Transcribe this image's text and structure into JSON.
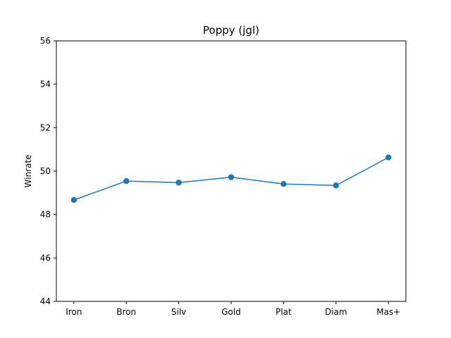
{
  "chart_data": {
    "type": "line",
    "title": "Poppy (jgl)",
    "xlabel": "",
    "ylabel": "Winrate",
    "categories": [
      "Iron",
      "Bron",
      "Silv",
      "Gold",
      "Plat",
      "Diam",
      "Mas+"
    ],
    "series": [
      {
        "values": [
          48.67,
          49.54,
          49.47,
          49.72,
          49.41,
          49.34,
          50.63
        ],
        "color": "#1f77b4",
        "marker": "circle"
      }
    ],
    "ylim": [
      44,
      56
    ],
    "yticks": [
      44,
      46,
      48,
      50,
      52,
      54,
      56
    ],
    "grid": false,
    "legend": "none"
  }
}
